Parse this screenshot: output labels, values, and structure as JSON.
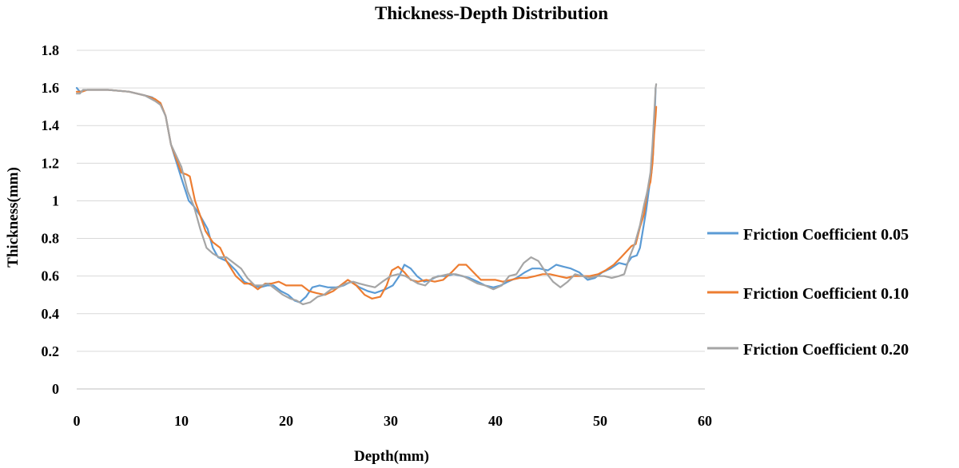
{
  "chart_data": {
    "type": "line",
    "title": "Thickness-Depth Distribution",
    "xlabel": "Depth(mm)",
    "ylabel": "Thickness(mm)",
    "xlim": [
      0,
      60
    ],
    "ylim": [
      0,
      1.8
    ],
    "xticks": [
      0,
      10,
      20,
      30,
      40,
      50,
      60
    ],
    "yticks": [
      0,
      0.2,
      0.4,
      0.6,
      0.8,
      1,
      1.2,
      1.4,
      1.6,
      1.8
    ],
    "ytick_labels": [
      "0",
      "0.2",
      "0.4",
      "0.6",
      "0.8",
      "1",
      "1.2",
      "1.4",
      "1.6",
      "1.8"
    ],
    "grid": "horizontal",
    "legend": "right",
    "series": [
      {
        "name": "Friction Coefficient 0.05",
        "color": "#5b9bd5",
        "points": [
          [
            0,
            1.6
          ],
          [
            0.3,
            1.58
          ],
          [
            1,
            1.59
          ],
          [
            3,
            1.59
          ],
          [
            5,
            1.58
          ],
          [
            6.5,
            1.56
          ],
          [
            7.2,
            1.55
          ],
          [
            8,
            1.52
          ],
          [
            8.5,
            1.45
          ],
          [
            9,
            1.3
          ],
          [
            10,
            1.12
          ],
          [
            10.7,
            1.0
          ],
          [
            11.2,
            0.97
          ],
          [
            11.8,
            0.92
          ],
          [
            12.5,
            0.85
          ],
          [
            13,
            0.75
          ],
          [
            13.5,
            0.7
          ],
          [
            14.3,
            0.68
          ],
          [
            15.2,
            0.63
          ],
          [
            16,
            0.57
          ],
          [
            16.8,
            0.55
          ],
          [
            17.5,
            0.54
          ],
          [
            18.2,
            0.55
          ],
          [
            18.8,
            0.55
          ],
          [
            19.5,
            0.52
          ],
          [
            20.2,
            0.5
          ],
          [
            20.8,
            0.47
          ],
          [
            21.3,
            0.46
          ],
          [
            21.9,
            0.49
          ],
          [
            22.5,
            0.54
          ],
          [
            23.2,
            0.55
          ],
          [
            24,
            0.54
          ],
          [
            24.8,
            0.54
          ],
          [
            25.5,
            0.55
          ],
          [
            26.2,
            0.57
          ],
          [
            27,
            0.54
          ],
          [
            27.8,
            0.52
          ],
          [
            28.5,
            0.51
          ],
          [
            29.5,
            0.53
          ],
          [
            30.2,
            0.55
          ],
          [
            30.8,
            0.6
          ],
          [
            31.3,
            0.66
          ],
          [
            31.9,
            0.64
          ],
          [
            32.5,
            0.6
          ],
          [
            33.2,
            0.57
          ],
          [
            33.8,
            0.58
          ],
          [
            34.5,
            0.6
          ],
          [
            35.3,
            0.6
          ],
          [
            36,
            0.61
          ],
          [
            36.8,
            0.6
          ],
          [
            37.5,
            0.59
          ],
          [
            38.3,
            0.57
          ],
          [
            39,
            0.55
          ],
          [
            39.8,
            0.54
          ],
          [
            40.5,
            0.55
          ],
          [
            41.2,
            0.57
          ],
          [
            42,
            0.59
          ],
          [
            42.8,
            0.62
          ],
          [
            43.5,
            0.64
          ],
          [
            44.2,
            0.64
          ],
          [
            45,
            0.63
          ],
          [
            45.8,
            0.66
          ],
          [
            46.5,
            0.65
          ],
          [
            47.2,
            0.64
          ],
          [
            48,
            0.62
          ],
          [
            48.8,
            0.58
          ],
          [
            49.5,
            0.59
          ],
          [
            50.2,
            0.62
          ],
          [
            51,
            0.64
          ],
          [
            51.8,
            0.67
          ],
          [
            52.5,
            0.66
          ],
          [
            53,
            0.7
          ],
          [
            53.5,
            0.71
          ],
          [
            53.8,
            0.75
          ],
          [
            54.1,
            0.85
          ],
          [
            54.4,
            0.95
          ],
          [
            54.7,
            1.08
          ],
          [
            54.9,
            1.15
          ],
          [
            55.05,
            1.25
          ],
          [
            55.15,
            1.4
          ],
          [
            55.25,
            1.52
          ],
          [
            55.3,
            1.6
          ]
        ]
      },
      {
        "name": "Friction Coefficient 0.10",
        "color": "#ed7d31",
        "points": [
          [
            0,
            1.58
          ],
          [
            0.5,
            1.58
          ],
          [
            1,
            1.59
          ],
          [
            3,
            1.59
          ],
          [
            5,
            1.58
          ],
          [
            6.5,
            1.56
          ],
          [
            7.5,
            1.54
          ],
          [
            8,
            1.52
          ],
          [
            8.5,
            1.45
          ],
          [
            9,
            1.3
          ],
          [
            10,
            1.15
          ],
          [
            10.5,
            1.14
          ],
          [
            10.8,
            1.13
          ],
          [
            11.3,
            1.0
          ],
          [
            11.8,
            0.92
          ],
          [
            12.3,
            0.84
          ],
          [
            13,
            0.78
          ],
          [
            13.7,
            0.75
          ],
          [
            14.3,
            0.68
          ],
          [
            15.2,
            0.6
          ],
          [
            16,
            0.56
          ],
          [
            16.6,
            0.56
          ],
          [
            17.3,
            0.53
          ],
          [
            18,
            0.56
          ],
          [
            18.6,
            0.56
          ],
          [
            19.3,
            0.57
          ],
          [
            20,
            0.55
          ],
          [
            20.8,
            0.55
          ],
          [
            21.5,
            0.55
          ],
          [
            22.2,
            0.52
          ],
          [
            22.9,
            0.51
          ],
          [
            23.7,
            0.5
          ],
          [
            24.5,
            0.52
          ],
          [
            25.2,
            0.55
          ],
          [
            25.9,
            0.58
          ],
          [
            26.7,
            0.55
          ],
          [
            27.5,
            0.5
          ],
          [
            28.2,
            0.48
          ],
          [
            29,
            0.49
          ],
          [
            29.6,
            0.55
          ],
          [
            30.1,
            0.63
          ],
          [
            30.7,
            0.65
          ],
          [
            31.3,
            0.62
          ],
          [
            31.9,
            0.58
          ],
          [
            32.6,
            0.57
          ],
          [
            33.4,
            0.58
          ],
          [
            34.2,
            0.57
          ],
          [
            35,
            0.58
          ],
          [
            35.8,
            0.62
          ],
          [
            36.5,
            0.66
          ],
          [
            37.2,
            0.66
          ],
          [
            37.9,
            0.62
          ],
          [
            38.6,
            0.58
          ],
          [
            39.3,
            0.58
          ],
          [
            40,
            0.58
          ],
          [
            40.7,
            0.57
          ],
          [
            41.5,
            0.58
          ],
          [
            42.3,
            0.59
          ],
          [
            43,
            0.59
          ],
          [
            43.8,
            0.6
          ],
          [
            44.5,
            0.61
          ],
          [
            45.2,
            0.61
          ],
          [
            46,
            0.6
          ],
          [
            46.8,
            0.59
          ],
          [
            47.5,
            0.6
          ],
          [
            48.2,
            0.6
          ],
          [
            49,
            0.6
          ],
          [
            49.8,
            0.61
          ],
          [
            50.5,
            0.63
          ],
          [
            51.3,
            0.66
          ],
          [
            52,
            0.7
          ],
          [
            52.5,
            0.73
          ],
          [
            53,
            0.76
          ],
          [
            53.4,
            0.77
          ],
          [
            53.8,
            0.86
          ],
          [
            54.2,
            0.93
          ],
          [
            54.5,
            1.05
          ],
          [
            54.8,
            1.1
          ],
          [
            55,
            1.2
          ],
          [
            55.15,
            1.35
          ],
          [
            55.3,
            1.45
          ],
          [
            55.35,
            1.5
          ]
        ]
      },
      {
        "name": "Friction Coefficient 0.20",
        "color": "#a5a5a5",
        "points": [
          [
            0,
            1.57
          ],
          [
            0.3,
            1.57
          ],
          [
            0.6,
            1.59
          ],
          [
            1,
            1.59
          ],
          [
            3,
            1.59
          ],
          [
            5,
            1.58
          ],
          [
            6.5,
            1.56
          ],
          [
            7.5,
            1.53
          ],
          [
            8,
            1.51
          ],
          [
            8.5,
            1.45
          ],
          [
            9,
            1.3
          ],
          [
            10,
            1.18
          ],
          [
            10.6,
            1.05
          ],
          [
            11.2,
            0.97
          ],
          [
            11.8,
            0.85
          ],
          [
            12.4,
            0.75
          ],
          [
            13,
            0.72
          ],
          [
            13.6,
            0.7
          ],
          [
            14.3,
            0.7
          ],
          [
            15,
            0.67
          ],
          [
            15.7,
            0.64
          ],
          [
            16.3,
            0.59
          ],
          [
            17,
            0.55
          ],
          [
            17.7,
            0.55
          ],
          [
            18.3,
            0.56
          ],
          [
            19,
            0.53
          ],
          [
            19.7,
            0.5
          ],
          [
            20.4,
            0.48
          ],
          [
            21,
            0.47
          ],
          [
            21.6,
            0.45
          ],
          [
            22.3,
            0.46
          ],
          [
            23,
            0.49
          ],
          [
            23.6,
            0.5
          ],
          [
            24.3,
            0.53
          ],
          [
            25,
            0.54
          ],
          [
            25.7,
            0.56
          ],
          [
            26.4,
            0.57
          ],
          [
            27,
            0.56
          ],
          [
            27.7,
            0.55
          ],
          [
            28.5,
            0.54
          ],
          [
            29.2,
            0.57
          ],
          [
            30,
            0.6
          ],
          [
            30.7,
            0.61
          ],
          [
            31.4,
            0.6
          ],
          [
            32,
            0.58
          ],
          [
            32.6,
            0.56
          ],
          [
            33.3,
            0.55
          ],
          [
            34,
            0.59
          ],
          [
            34.7,
            0.6
          ],
          [
            35.5,
            0.61
          ],
          [
            36.2,
            0.61
          ],
          [
            36.9,
            0.6
          ],
          [
            37.6,
            0.58
          ],
          [
            38.3,
            0.56
          ],
          [
            39,
            0.55
          ],
          [
            39.8,
            0.53
          ],
          [
            40.6,
            0.55
          ],
          [
            41.3,
            0.6
          ],
          [
            42,
            0.61
          ],
          [
            42.7,
            0.67
          ],
          [
            43.4,
            0.7
          ],
          [
            44.1,
            0.68
          ],
          [
            44.8,
            0.62
          ],
          [
            45.5,
            0.57
          ],
          [
            46.2,
            0.54
          ],
          [
            46.9,
            0.57
          ],
          [
            47.6,
            0.61
          ],
          [
            48.3,
            0.6
          ],
          [
            49,
            0.59
          ],
          [
            49.7,
            0.6
          ],
          [
            50.4,
            0.6
          ],
          [
            51.1,
            0.59
          ],
          [
            51.8,
            0.6
          ],
          [
            52.3,
            0.61
          ],
          [
            52.8,
            0.7
          ],
          [
            53.3,
            0.77
          ],
          [
            53.8,
            0.87
          ],
          [
            54.2,
            0.98
          ],
          [
            54.5,
            1.05
          ],
          [
            54.8,
            1.15
          ],
          [
            55,
            1.3
          ],
          [
            55.15,
            1.45
          ],
          [
            55.3,
            1.6
          ],
          [
            55.35,
            1.62
          ]
        ]
      }
    ]
  }
}
